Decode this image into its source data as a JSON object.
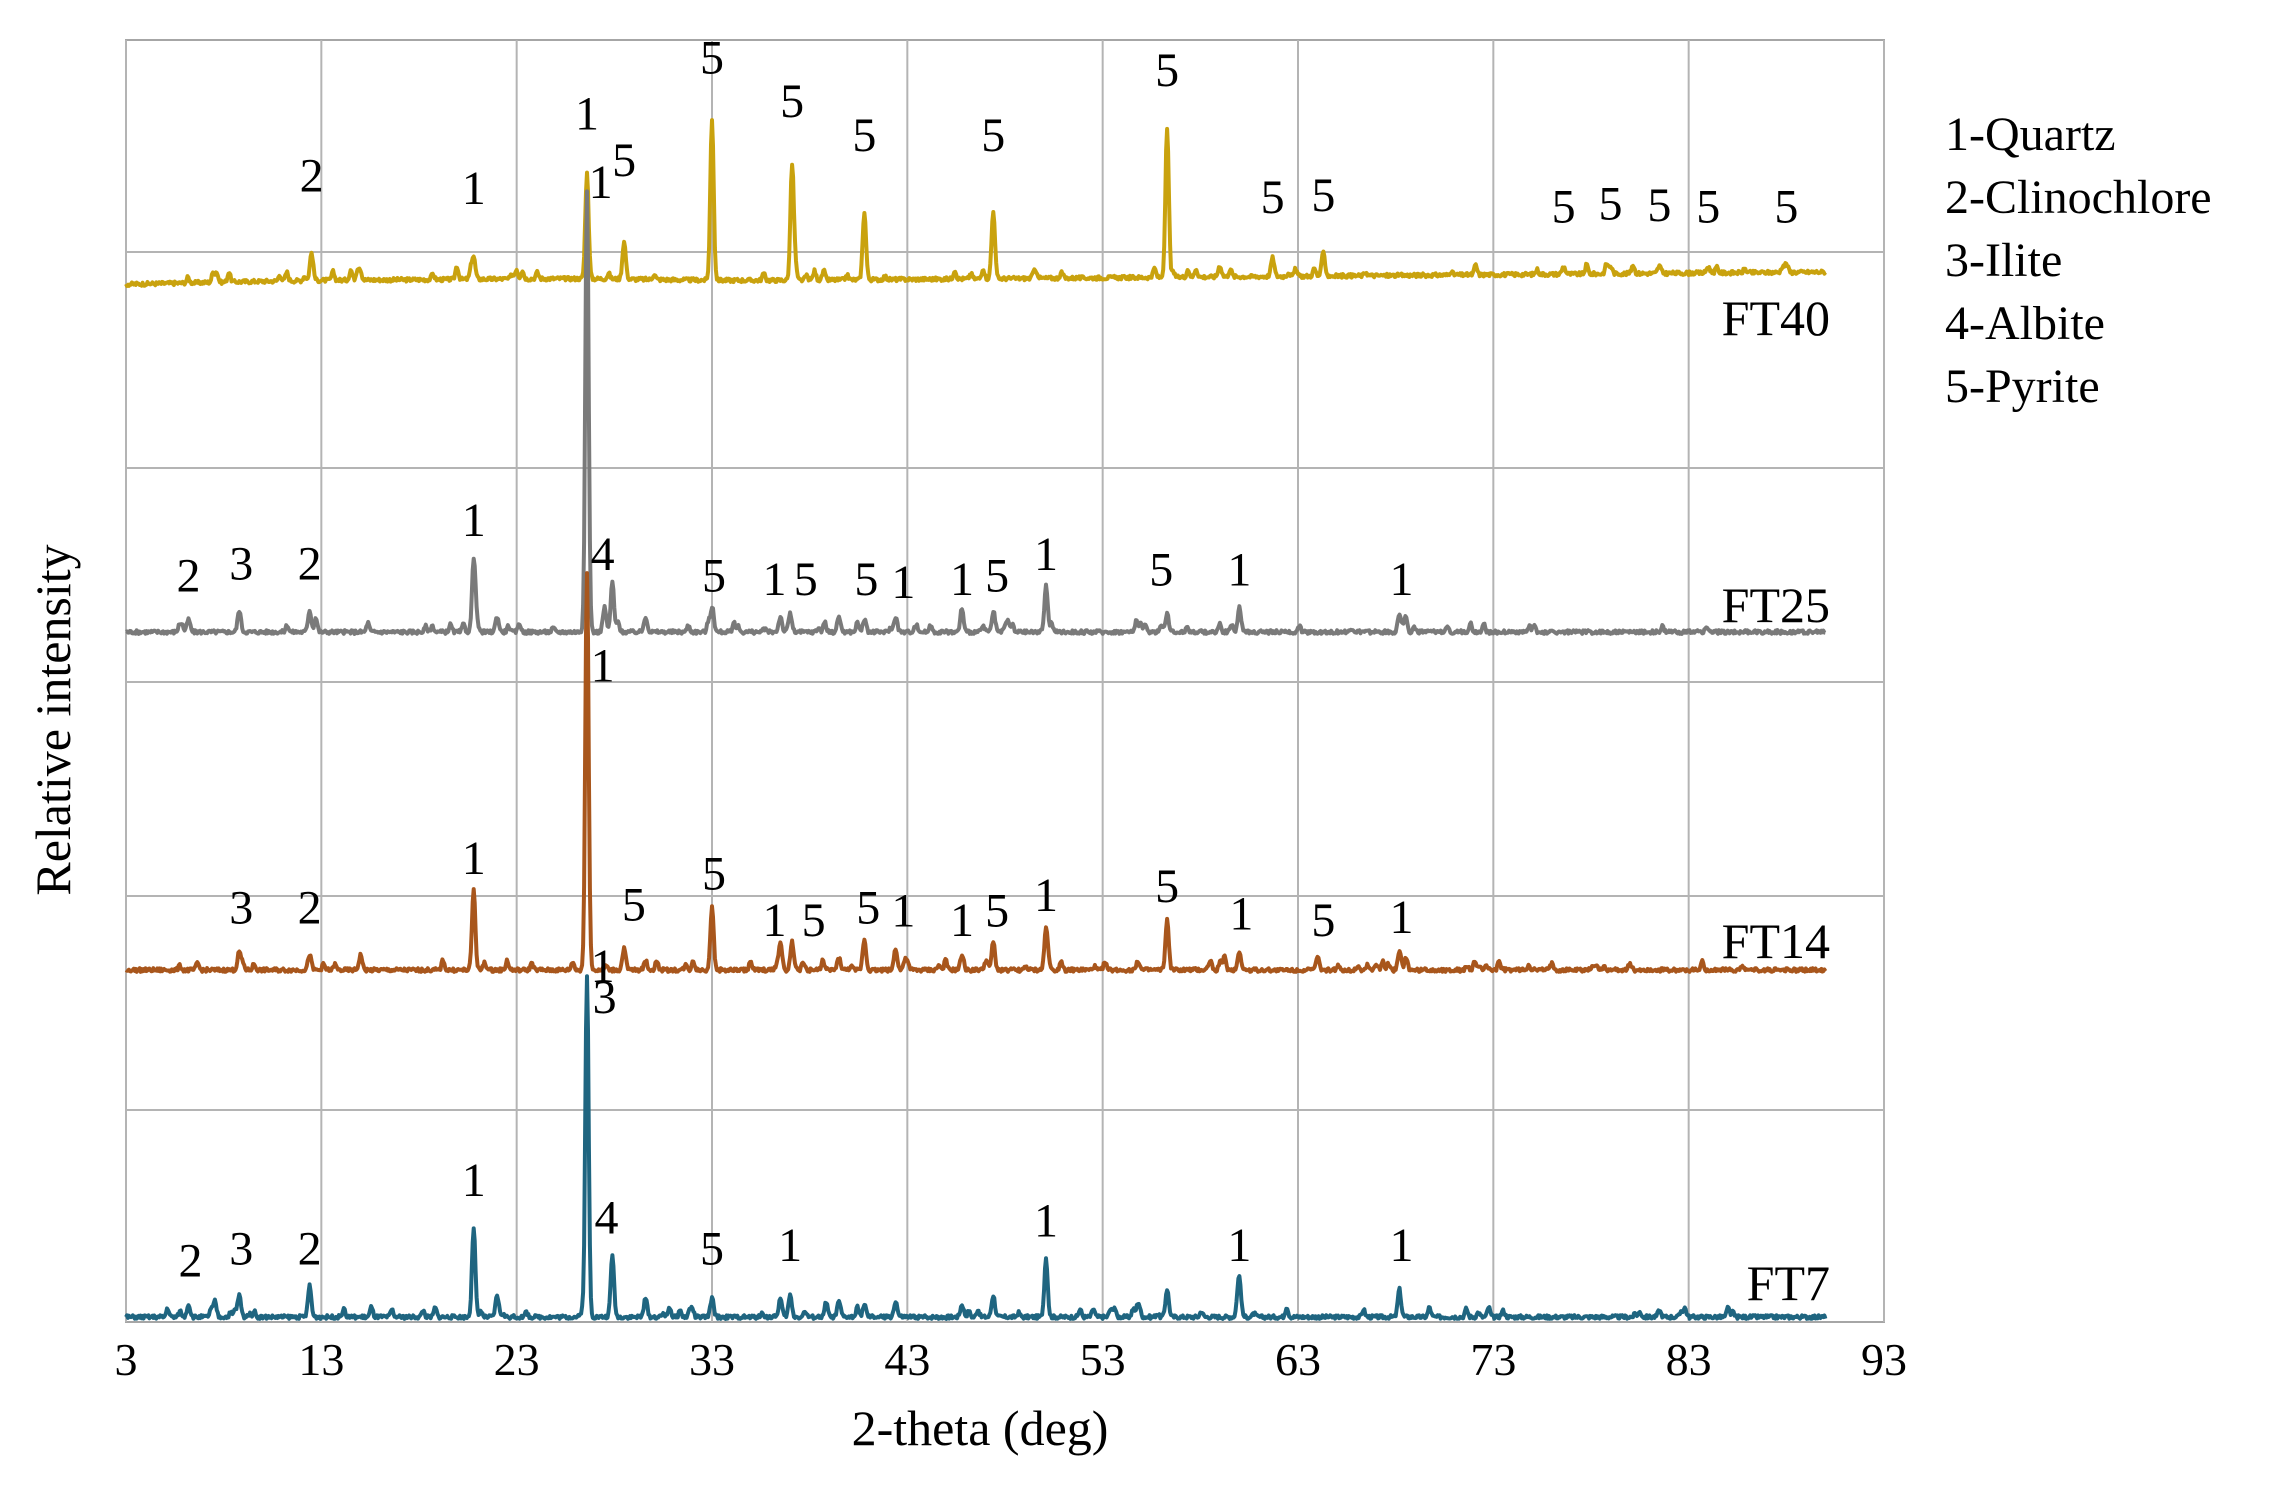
{
  "chart_data": {
    "type": "line",
    "xlabel": "2-theta (deg)",
    "ylabel": "Relative intensity",
    "xlim": [
      3,
      93
    ],
    "xticks": [
      3,
      13,
      23,
      33,
      43,
      53,
      63,
      73,
      83,
      93
    ],
    "xtick_labels": [
      "3",
      "13",
      "23",
      "33",
      "43",
      "53",
      "63",
      "73",
      "83",
      "93"
    ],
    "grid": true,
    "legend": {
      "placement": "right",
      "entries": [
        "1-Quartz",
        "2-Clinochlore",
        "3-Ilite",
        "4-Albite",
        "5-Pyrite"
      ]
    },
    "series": [
      {
        "name": "FT40",
        "color": "#c9a20e",
        "baseline": 0.22,
        "hump": 0.06,
        "peaks": [
          {
            "x": 12.5,
            "h": 0.45
          },
          {
            "x": 20.8,
            "h": 0.35
          },
          {
            "x": 26.6,
            "h": 1.7
          },
          {
            "x": 28.5,
            "h": 0.6
          },
          {
            "x": 33.0,
            "h": 2.6
          },
          {
            "x": 37.1,
            "h": 1.85
          },
          {
            "x": 40.8,
            "h": 1.1
          },
          {
            "x": 47.4,
            "h": 1.1
          },
          {
            "x": 56.3,
            "h": 2.4
          },
          {
            "x": 59.0,
            "h": 0.18
          },
          {
            "x": 61.7,
            "h": 0.3
          },
          {
            "x": 64.3,
            "h": 0.38
          },
          {
            "x": 76.6,
            "h": 0.12
          },
          {
            "x": 79.0,
            "h": 0.12
          },
          {
            "x": 81.5,
            "h": 0.12
          },
          {
            "x": 84.0,
            "h": 0.1
          },
          {
            "x": 88.0,
            "h": 0.14
          }
        ],
        "peak_labels": [
          {
            "x": 12.5,
            "text": "2",
            "y": 1.3
          },
          {
            "x": 20.8,
            "text": "1",
            "y": 1.1
          },
          {
            "x": 26.6,
            "text": "1",
            "y": 2.3
          },
          {
            "x": 28.5,
            "text": "5",
            "y": 1.55
          },
          {
            "x": 33.0,
            "text": "5",
            "y": 3.2
          },
          {
            "x": 37.1,
            "text": "5",
            "y": 2.5
          },
          {
            "x": 40.8,
            "text": "5",
            "y": 1.95
          },
          {
            "x": 47.4,
            "text": "5",
            "y": 1.95
          },
          {
            "x": 56.3,
            "text": "5",
            "y": 3.0
          },
          {
            "x": 61.7,
            "text": "5",
            "y": 0.95
          },
          {
            "x": 64.3,
            "text": "5",
            "y": 0.98
          },
          {
            "x": 76.6,
            "text": "5",
            "y": 0.8
          },
          {
            "x": 79.0,
            "text": "5",
            "y": 0.85
          },
          {
            "x": 81.5,
            "text": "5",
            "y": 0.82
          },
          {
            "x": 84.0,
            "text": "5",
            "y": 0.8
          },
          {
            "x": 88.0,
            "text": "5",
            "y": 0.8
          }
        ]
      },
      {
        "name": "FT25",
        "color": "#7a7a7a",
        "baseline": 0.0,
        "hump": 0.0,
        "peaks": [
          {
            "x": 6.2,
            "h": 0.2
          },
          {
            "x": 8.8,
            "h": 0.35
          },
          {
            "x": 12.4,
            "h": 0.35
          },
          {
            "x": 20.8,
            "h": 1.1
          },
          {
            "x": 22.0,
            "h": 0.25
          },
          {
            "x": 26.6,
            "h": 7.1
          },
          {
            "x": 27.5,
            "h": 0.4
          },
          {
            "x": 27.9,
            "h": 0.8
          },
          {
            "x": 29.6,
            "h": 0.25
          },
          {
            "x": 33.0,
            "h": 0.3
          },
          {
            "x": 36.5,
            "h": 0.25
          },
          {
            "x": 37.0,
            "h": 0.3
          },
          {
            "x": 39.5,
            "h": 0.25
          },
          {
            "x": 40.8,
            "h": 0.2
          },
          {
            "x": 42.4,
            "h": 0.25
          },
          {
            "x": 45.8,
            "h": 0.2
          },
          {
            "x": 47.4,
            "h": 0.25
          },
          {
            "x": 50.1,
            "h": 0.75
          },
          {
            "x": 56.3,
            "h": 0.3
          },
          {
            "x": 60.0,
            "h": 0.4
          },
          {
            "x": 68.2,
            "h": 0.3
          },
          {
            "x": 68.5,
            "h": 0.25
          }
        ],
        "peak_labels": [
          {
            "x": 6.2,
            "text": "2",
            "y": 0.65
          },
          {
            "x": 8.9,
            "text": "3",
            "y": 0.85
          },
          {
            "x": 12.4,
            "text": "2",
            "y": 0.85
          },
          {
            "x": 20.8,
            "text": "1",
            "y": 1.55
          },
          {
            "x": 27.3,
            "text": "1",
            "y": 7.0
          },
          {
            "x": 27.4,
            "text": "4",
            "y": 1.0
          },
          {
            "x": 33.1,
            "text": "5",
            "y": 0.65
          },
          {
            "x": 36.2,
            "text": "1",
            "y": 0.6
          },
          {
            "x": 37.8,
            "text": "5",
            "y": 0.6
          },
          {
            "x": 40.9,
            "text": "5",
            "y": 0.6
          },
          {
            "x": 42.8,
            "text": "1",
            "y": 0.55
          },
          {
            "x": 45.8,
            "text": "1",
            "y": 0.6
          },
          {
            "x": 47.6,
            "text": "5",
            "y": 0.65
          },
          {
            "x": 50.1,
            "text": "1",
            "y": 1.0
          },
          {
            "x": 56.0,
            "text": "5",
            "y": 0.75
          },
          {
            "x": 60.0,
            "text": "1",
            "y": 0.75
          },
          {
            "x": 68.3,
            "text": "1",
            "y": 0.6
          }
        ]
      },
      {
        "name": "FT14",
        "color": "#a8561c",
        "baseline": 0.0,
        "hump": 0.0,
        "peaks": [
          {
            "x": 8.8,
            "h": 0.3
          },
          {
            "x": 12.4,
            "h": 0.25
          },
          {
            "x": 15.0,
            "h": 0.18
          },
          {
            "x": 20.8,
            "h": 1.3
          },
          {
            "x": 26.6,
            "h": 6.4
          },
          {
            "x": 28.5,
            "h": 0.35
          },
          {
            "x": 29.6,
            "h": 0.15
          },
          {
            "x": 33.0,
            "h": 1.0
          },
          {
            "x": 36.5,
            "h": 0.45
          },
          {
            "x": 37.1,
            "h": 0.45
          },
          {
            "x": 39.5,
            "h": 0.2
          },
          {
            "x": 40.8,
            "h": 0.5
          },
          {
            "x": 42.4,
            "h": 0.35
          },
          {
            "x": 45.8,
            "h": 0.25
          },
          {
            "x": 47.4,
            "h": 0.45
          },
          {
            "x": 50.1,
            "h": 0.65
          },
          {
            "x": 54.8,
            "h": 0.15
          },
          {
            "x": 56.3,
            "h": 0.8
          },
          {
            "x": 58.5,
            "h": 0.15
          },
          {
            "x": 60.0,
            "h": 0.3
          },
          {
            "x": 64.0,
            "h": 0.2
          },
          {
            "x": 68.2,
            "h": 0.3
          },
          {
            "x": 76.0,
            "h": 0.1
          },
          {
            "x": 80.0,
            "h": 0.1
          }
        ],
        "peak_labels": [
          {
            "x": 8.9,
            "text": "3",
            "y": 0.75
          },
          {
            "x": 12.4,
            "text": "2",
            "y": 0.75
          },
          {
            "x": 20.8,
            "text": "1",
            "y": 1.55
          },
          {
            "x": 27.4,
            "text": "1",
            "y": 4.65
          },
          {
            "x": 29.0,
            "text": "5",
            "y": 0.8
          },
          {
            "x": 33.1,
            "text": "5",
            "y": 1.3
          },
          {
            "x": 36.2,
            "text": "1",
            "y": 0.55
          },
          {
            "x": 38.2,
            "text": "5",
            "y": 0.55
          },
          {
            "x": 41.0,
            "text": "5",
            "y": 0.75
          },
          {
            "x": 42.8,
            "text": "1",
            "y": 0.7
          },
          {
            "x": 45.8,
            "text": "1",
            "y": 0.55
          },
          {
            "x": 47.6,
            "text": "5",
            "y": 0.7
          },
          {
            "x": 50.1,
            "text": "1",
            "y": 0.95
          },
          {
            "x": 56.3,
            "text": "5",
            "y": 1.1
          },
          {
            "x": 60.1,
            "text": "1",
            "y": 0.65
          },
          {
            "x": 64.3,
            "text": "5",
            "y": 0.55
          },
          {
            "x": 68.3,
            "text": "1",
            "y": 0.6
          }
        ]
      },
      {
        "name": "FT7",
        "color": "#1f6580",
        "baseline": 0.0,
        "hump": 0.0,
        "peaks": [
          {
            "x": 6.2,
            "h": 0.2
          },
          {
            "x": 8.8,
            "h": 0.35
          },
          {
            "x": 12.4,
            "h": 0.5
          },
          {
            "x": 20.8,
            "h": 1.45
          },
          {
            "x": 22.0,
            "h": 0.35
          },
          {
            "x": 26.6,
            "h": 5.5
          },
          {
            "x": 27.9,
            "h": 1.0
          },
          {
            "x": 29.6,
            "h": 0.3
          },
          {
            "x": 33.0,
            "h": 0.3
          },
          {
            "x": 36.5,
            "h": 0.3
          },
          {
            "x": 37.0,
            "h": 0.35
          },
          {
            "x": 39.5,
            "h": 0.25
          },
          {
            "x": 40.8,
            "h": 0.2
          },
          {
            "x": 42.4,
            "h": 0.25
          },
          {
            "x": 45.8,
            "h": 0.2
          },
          {
            "x": 47.4,
            "h": 0.35
          },
          {
            "x": 50.1,
            "h": 0.95
          },
          {
            "x": 54.8,
            "h": 0.2
          },
          {
            "x": 56.3,
            "h": 0.45
          },
          {
            "x": 60.0,
            "h": 0.6
          },
          {
            "x": 68.2,
            "h": 0.35
          },
          {
            "x": 73.5,
            "h": 0.1
          },
          {
            "x": 81.5,
            "h": 0.1
          }
        ],
        "peak_labels": [
          {
            "x": 6.3,
            "text": "2",
            "y": 0.65
          },
          {
            "x": 8.9,
            "text": "3",
            "y": 0.85
          },
          {
            "x": 12.4,
            "text": "2",
            "y": 0.85
          },
          {
            "x": 20.8,
            "text": "1",
            "y": 1.95
          },
          {
            "x": 27.4,
            "text": "1",
            "y": 5.4
          },
          {
            "x": 27.5,
            "text": "3",
            "y": 4.9
          },
          {
            "x": 27.6,
            "text": "4",
            "y": 1.35
          },
          {
            "x": 33.0,
            "text": "5",
            "y": 0.85
          },
          {
            "x": 37.0,
            "text": "1",
            "y": 0.9
          },
          {
            "x": 50.1,
            "text": "1",
            "y": 1.3
          },
          {
            "x": 60.0,
            "text": "1",
            "y": 0.9
          },
          {
            "x": 68.3,
            "text": "1",
            "y": 0.9
          }
        ]
      }
    ]
  }
}
